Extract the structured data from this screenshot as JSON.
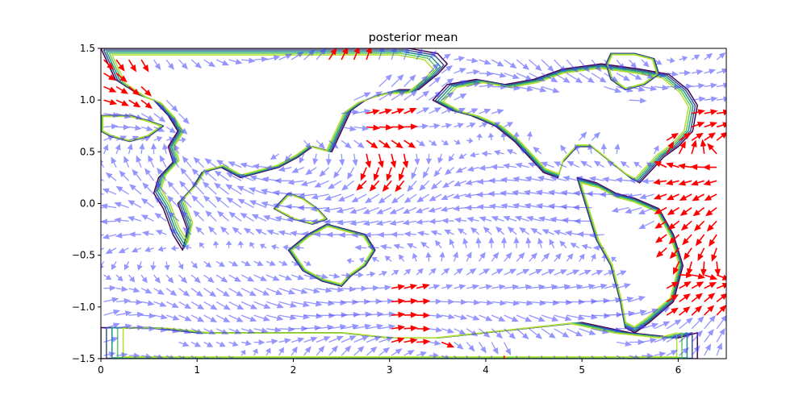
{
  "chart_data": {
    "type": "quiver",
    "title": "posterior mean",
    "xlabel": "",
    "ylabel": "",
    "xlim": [
      0,
      6.5
    ],
    "ylim": [
      -1.5,
      1.5
    ],
    "xticks": [
      0,
      1,
      2,
      3,
      4,
      5,
      6
    ],
    "yticks": [
      -1.5,
      -1.0,
      -0.5,
      0.0,
      0.5,
      1.0,
      1.5
    ],
    "xtick_labels": [
      "0",
      "1",
      "2",
      "3",
      "4",
      "5",
      "6"
    ],
    "ytick_labels": [
      "−1.5",
      "−1.0",
      "−0.5",
      "0.0",
      "0.5",
      "1.0",
      "1.5"
    ],
    "grid": false,
    "colors": {
      "vectors": "#4040ff",
      "highlight_vectors": "#ff0000",
      "contour_levels": [
        "#440154",
        "#3b528b",
        "#21918c",
        "#5ec962",
        "#b5de2b"
      ]
    },
    "land_outlines": [
      {
        "name": "americas-north",
        "points": [
          [
            0,
            1.5
          ],
          [
            0.15,
            1.2
          ],
          [
            0.4,
            1.05
          ],
          [
            0.55,
            1.0
          ],
          [
            0.7,
            0.85
          ],
          [
            0.8,
            0.7
          ],
          [
            0.7,
            0.55
          ],
          [
            0.75,
            0.4
          ],
          [
            0.6,
            0.25
          ],
          [
            0.55,
            0.1
          ],
          [
            0.65,
            -0.05
          ],
          [
            0.75,
            -0.3
          ],
          [
            0.85,
            -0.45
          ],
          [
            0.9,
            -0.25
          ],
          [
            0.8,
            0.0
          ],
          [
            0.95,
            0.15
          ],
          [
            1.05,
            0.3
          ],
          [
            1.25,
            0.35
          ],
          [
            1.45,
            0.25
          ],
          [
            1.65,
            0.3
          ],
          [
            1.85,
            0.35
          ],
          [
            2.05,
            0.45
          ],
          [
            2.2,
            0.55
          ],
          [
            2.4,
            0.5
          ],
          [
            2.5,
            0.7
          ],
          [
            2.6,
            0.9
          ],
          [
            2.75,
            1.0
          ],
          [
            2.9,
            1.05
          ],
          [
            3.1,
            1.1
          ],
          [
            3.3,
            1.1
          ],
          [
            3.5,
            1.25
          ],
          [
            3.6,
            1.35
          ],
          [
            3.5,
            1.45
          ],
          [
            3.2,
            1.5
          ]
        ]
      },
      {
        "name": "americas-south",
        "points": [
          [
            4.95,
            0.25
          ],
          [
            5.15,
            0.2
          ],
          [
            5.35,
            0.1
          ],
          [
            5.55,
            0.05
          ],
          [
            5.8,
            -0.05
          ],
          [
            5.95,
            -0.3
          ],
          [
            6.05,
            -0.6
          ],
          [
            5.95,
            -0.95
          ],
          [
            5.7,
            -1.15
          ],
          [
            5.55,
            -1.25
          ],
          [
            5.45,
            -1.2
          ],
          [
            5.4,
            -0.95
          ],
          [
            5.3,
            -0.6
          ],
          [
            5.15,
            -0.35
          ],
          [
            5.05,
            -0.05
          ]
        ]
      },
      {
        "name": "eurasia-africa",
        "points": [
          [
            3.45,
            1.0
          ],
          [
            3.6,
            1.15
          ],
          [
            3.9,
            1.2
          ],
          [
            4.2,
            1.15
          ],
          [
            4.5,
            1.2
          ],
          [
            4.8,
            1.3
          ],
          [
            5.2,
            1.35
          ],
          [
            5.6,
            1.3
          ],
          [
            5.9,
            1.25
          ],
          [
            6.1,
            1.1
          ],
          [
            6.2,
            0.95
          ],
          [
            6.15,
            0.7
          ],
          [
            6.0,
            0.55
          ],
          [
            5.85,
            0.45
          ],
          [
            5.7,
            0.3
          ],
          [
            5.6,
            0.2
          ],
          [
            5.5,
            0.25
          ],
          [
            5.3,
            0.4
          ],
          [
            5.1,
            0.55
          ],
          [
            4.95,
            0.55
          ],
          [
            4.8,
            0.4
          ],
          [
            4.75,
            0.25
          ],
          [
            4.6,
            0.3
          ],
          [
            4.45,
            0.45
          ],
          [
            4.3,
            0.6
          ],
          [
            4.1,
            0.75
          ],
          [
            3.85,
            0.85
          ],
          [
            3.65,
            0.9
          ]
        ]
      },
      {
        "name": "australia",
        "points": [
          [
            1.95,
            -0.45
          ],
          [
            2.15,
            -0.3
          ],
          [
            2.35,
            -0.2
          ],
          [
            2.55,
            -0.25
          ],
          [
            2.75,
            -0.3
          ],
          [
            2.85,
            -0.45
          ],
          [
            2.75,
            -0.6
          ],
          [
            2.6,
            -0.7
          ],
          [
            2.5,
            -0.8
          ],
          [
            2.3,
            -0.75
          ],
          [
            2.1,
            -0.65
          ]
        ]
      },
      {
        "name": "antarctica",
        "points": [
          [
            0,
            -1.2
          ],
          [
            0.5,
            -1.2
          ],
          [
            1.0,
            -1.25
          ],
          [
            1.5,
            -1.25
          ],
          [
            2.0,
            -1.25
          ],
          [
            2.5,
            -1.25
          ],
          [
            3.0,
            -1.3
          ],
          [
            3.5,
            -1.3
          ],
          [
            4.0,
            -1.25
          ],
          [
            4.5,
            -1.2
          ],
          [
            5.0,
            -1.15
          ],
          [
            5.5,
            -1.25
          ],
          [
            6.0,
            -1.3
          ],
          [
            6.2,
            -1.25
          ],
          [
            6.2,
            -1.5
          ],
          [
            0,
            -1.5
          ]
        ]
      },
      {
        "name": "greenland",
        "points": [
          [
            5.3,
            1.45
          ],
          [
            5.55,
            1.45
          ],
          [
            5.75,
            1.4
          ],
          [
            5.8,
            1.25
          ],
          [
            5.65,
            1.15
          ],
          [
            5.45,
            1.1
          ],
          [
            5.3,
            1.2
          ],
          [
            5.25,
            1.35
          ]
        ]
      },
      {
        "name": "islands-indonesia",
        "points": [
          [
            1.8,
            -0.05
          ],
          [
            1.95,
            0.1
          ],
          [
            2.1,
            0.05
          ],
          [
            2.25,
            -0.05
          ],
          [
            2.35,
            -0.15
          ],
          [
            2.2,
            -0.2
          ],
          [
            2.0,
            -0.15
          ]
        ]
      },
      {
        "name": "island-west",
        "points": [
          [
            0.0,
            0.85
          ],
          [
            0.3,
            0.85
          ],
          [
            0.5,
            0.8
          ],
          [
            0.65,
            0.75
          ],
          [
            0.5,
            0.65
          ],
          [
            0.3,
            0.6
          ],
          [
            0.1,
            0.65
          ],
          [
            0.0,
            0.7
          ]
        ]
      }
    ],
    "arrow_field": {
      "grid_step": 0.13,
      "arrow_scale": 0.16,
      "red_regions": [
        {
          "x": [
            0.0,
            0.5
          ],
          "y": [
            0.9,
            1.5
          ]
        },
        {
          "x": [
            2.7,
            3.2
          ],
          "y": [
            0.1,
            0.95
          ]
        },
        {
          "x": [
            2.3,
            2.8
          ],
          "y": [
            1.2,
            1.5
          ]
        },
        {
          "x": [
            5.8,
            6.5
          ],
          "y": [
            -1.1,
            0.9
          ]
        },
        {
          "x": [
            2.9,
            3.3
          ],
          "y": [
            -1.4,
            -0.7
          ]
        },
        {
          "x": [
            4.1,
            4.3
          ],
          "y": [
            -1.5,
            -1.4
          ]
        },
        {
          "x": [
            3.5,
            3.6
          ],
          "y": [
            -1.4,
            -1.3
          ]
        }
      ]
    }
  }
}
